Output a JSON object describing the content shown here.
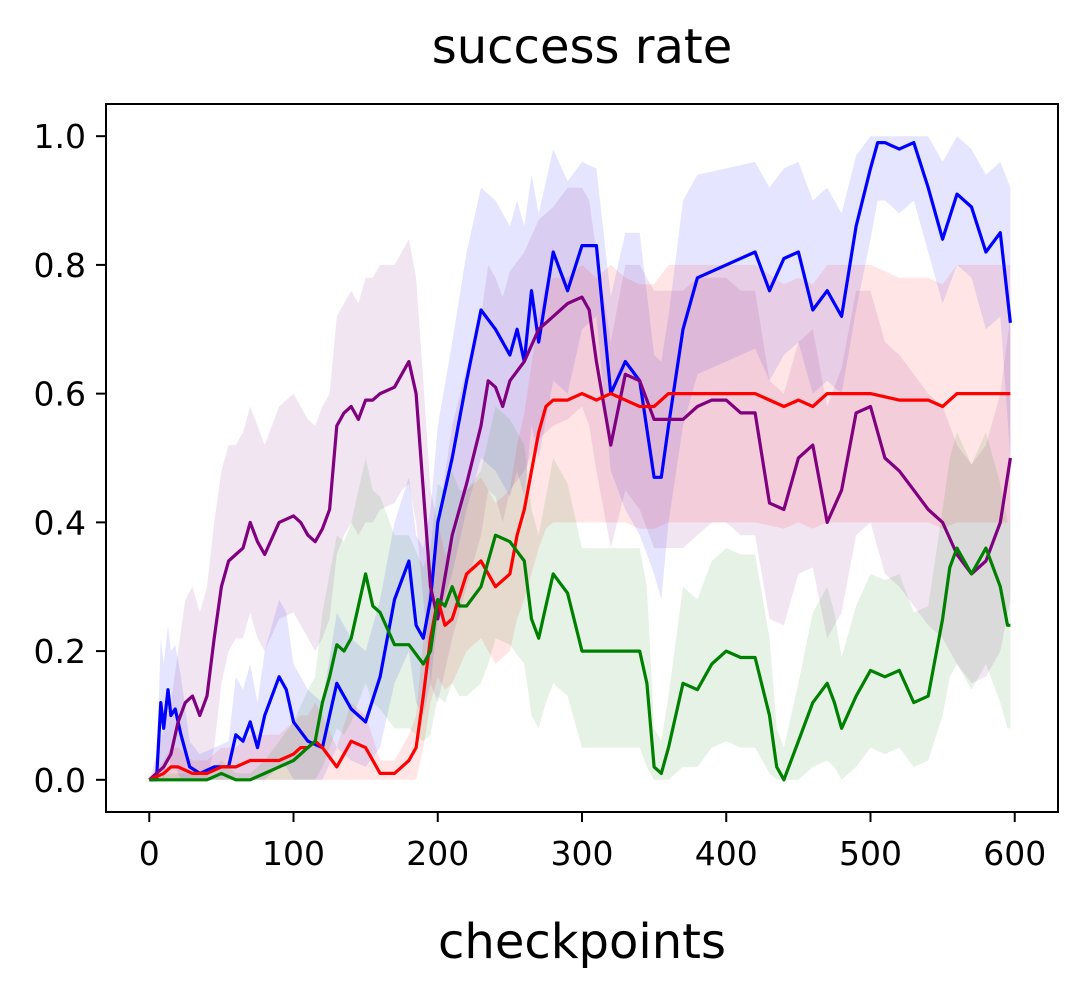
{
  "chart_data": {
    "type": "line",
    "title": "success rate",
    "xlabel": "checkpoints",
    "ylabel": "",
    "xlim": [
      -30,
      630
    ],
    "ylim": [
      -0.05,
      1.05
    ],
    "xticks": [
      0,
      100,
      200,
      300,
      400,
      500,
      600
    ],
    "yticks": [
      0.0,
      0.2,
      0.4,
      0.6,
      0.8,
      1.0
    ],
    "xtick_labels": [
      "0",
      "100",
      "200",
      "300",
      "400",
      "500",
      "600"
    ],
    "ytick_labels": [
      "0.0",
      "0.2",
      "0.4",
      "0.6",
      "0.8",
      "1.0"
    ],
    "grid": false,
    "legend": "none",
    "series": [
      {
        "color": "#0000ff",
        "band_opacity": 0.1,
        "x": [
          0,
          5,
          8,
          10,
          13,
          15,
          18,
          22,
          28,
          35,
          45,
          55,
          60,
          65,
          70,
          75,
          80,
          90,
          95,
          100,
          110,
          120,
          130,
          140,
          150,
          160,
          170,
          180,
          185,
          190,
          195,
          200,
          210,
          220,
          230,
          240,
          250,
          255,
          260,
          265,
          270,
          280,
          290,
          300,
          310,
          320,
          330,
          340,
          350,
          355,
          360,
          370,
          380,
          400,
          420,
          430,
          440,
          450,
          460,
          470,
          480,
          490,
          500,
          505,
          510,
          520,
          530,
          540,
          550,
          560,
          570,
          580,
          590,
          597
        ],
        "y": [
          0.0,
          0.0,
          0.12,
          0.08,
          0.14,
          0.1,
          0.11,
          0.07,
          0.02,
          0.01,
          0.02,
          0.02,
          0.07,
          0.06,
          0.09,
          0.05,
          0.1,
          0.16,
          0.14,
          0.09,
          0.06,
          0.05,
          0.15,
          0.11,
          0.09,
          0.16,
          0.28,
          0.34,
          0.24,
          0.22,
          0.28,
          0.4,
          0.5,
          0.62,
          0.73,
          0.7,
          0.66,
          0.7,
          0.65,
          0.76,
          0.68,
          0.82,
          0.76,
          0.83,
          0.83,
          0.6,
          0.65,
          0.62,
          0.47,
          0.47,
          0.55,
          0.7,
          0.78,
          0.8,
          0.82,
          0.76,
          0.81,
          0.82,
          0.73,
          0.76,
          0.72,
          0.86,
          0.95,
          0.99,
          0.99,
          0.98,
          0.99,
          0.92,
          0.84,
          0.91,
          0.89,
          0.82,
          0.85,
          0.71
        ],
        "y_low": [
          0.0,
          0.0,
          0.02,
          0.0,
          0.04,
          0.02,
          0.02,
          0.0,
          0.0,
          0.0,
          0.0,
          0.0,
          0.0,
          0.0,
          0.0,
          0.0,
          0.0,
          0.02,
          0.02,
          0.0,
          0.0,
          0.0,
          0.05,
          0.03,
          0.02,
          0.05,
          0.15,
          0.2,
          0.12,
          0.1,
          0.15,
          0.25,
          0.32,
          0.42,
          0.5,
          0.48,
          0.44,
          0.48,
          0.44,
          0.55,
          0.5,
          0.62,
          0.6,
          0.7,
          0.72,
          0.48,
          0.42,
          0.38,
          0.32,
          0.28,
          0.4,
          0.55,
          0.63,
          0.65,
          0.67,
          0.62,
          0.66,
          0.68,
          0.6,
          0.62,
          0.6,
          0.73,
          0.84,
          0.9,
          0.9,
          0.88,
          0.9,
          0.82,
          0.74,
          0.8,
          0.78,
          0.7,
          0.72,
          0.5
        ],
        "y_high": [
          0.0,
          0.02,
          0.22,
          0.18,
          0.24,
          0.2,
          0.21,
          0.16,
          0.06,
          0.04,
          0.05,
          0.06,
          0.16,
          0.14,
          0.18,
          0.12,
          0.2,
          0.28,
          0.26,
          0.18,
          0.14,
          0.12,
          0.26,
          0.22,
          0.2,
          0.28,
          0.4,
          0.47,
          0.38,
          0.36,
          0.42,
          0.55,
          0.68,
          0.82,
          0.92,
          0.9,
          0.86,
          0.9,
          0.86,
          0.94,
          0.88,
          0.98,
          0.93,
          0.96,
          0.95,
          0.75,
          0.85,
          0.85,
          0.66,
          0.65,
          0.72,
          0.9,
          0.94,
          0.95,
          0.96,
          0.92,
          0.95,
          0.96,
          0.9,
          0.92,
          0.88,
          0.97,
          1.0,
          1.0,
          1.0,
          1.0,
          1.0,
          1.0,
          0.96,
          1.0,
          0.98,
          0.94,
          0.96,
          0.92
        ]
      },
      {
        "color": "#800080",
        "band_opacity": 0.1,
        "x": [
          0,
          10,
          15,
          20,
          25,
          30,
          35,
          40,
          45,
          50,
          55,
          60,
          65,
          70,
          75,
          80,
          90,
          100,
          105,
          110,
          115,
          120,
          125,
          130,
          135,
          140,
          145,
          150,
          155,
          160,
          170,
          175,
          180,
          185,
          190,
          195,
          200,
          210,
          220,
          230,
          235,
          240,
          245,
          250,
          260,
          270,
          280,
          290,
          300,
          305,
          310,
          320,
          330,
          340,
          350,
          360,
          370,
          380,
          390,
          400,
          410,
          420,
          430,
          440,
          450,
          460,
          470,
          480,
          490,
          500,
          510,
          520,
          530,
          540,
          550,
          560,
          570,
          580,
          590,
          597
        ],
        "y": [
          0.0,
          0.02,
          0.04,
          0.09,
          0.12,
          0.13,
          0.1,
          0.13,
          0.22,
          0.3,
          0.34,
          0.35,
          0.36,
          0.4,
          0.37,
          0.35,
          0.4,
          0.41,
          0.4,
          0.38,
          0.37,
          0.39,
          0.42,
          0.55,
          0.57,
          0.58,
          0.56,
          0.59,
          0.59,
          0.6,
          0.61,
          0.63,
          0.65,
          0.6,
          0.45,
          0.3,
          0.25,
          0.38,
          0.46,
          0.55,
          0.62,
          0.61,
          0.58,
          0.62,
          0.65,
          0.7,
          0.72,
          0.74,
          0.75,
          0.73,
          0.65,
          0.52,
          0.63,
          0.62,
          0.56,
          0.56,
          0.56,
          0.58,
          0.59,
          0.59,
          0.57,
          0.57,
          0.43,
          0.42,
          0.5,
          0.52,
          0.4,
          0.45,
          0.57,
          0.58,
          0.5,
          0.48,
          0.45,
          0.42,
          0.4,
          0.35,
          0.32,
          0.34,
          0.4,
          0.5
        ],
        "y_low": [
          0.0,
          0.0,
          0.0,
          0.0,
          0.0,
          0.0,
          0.0,
          0.0,
          0.05,
          0.15,
          0.2,
          0.22,
          0.22,
          0.26,
          0.22,
          0.2,
          0.25,
          0.26,
          0.24,
          0.22,
          0.2,
          0.22,
          0.25,
          0.35,
          0.38,
          0.4,
          0.38,
          0.4,
          0.4,
          0.42,
          0.43,
          0.45,
          0.46,
          0.4,
          0.28,
          0.15,
          0.12,
          0.22,
          0.3,
          0.38,
          0.45,
          0.44,
          0.4,
          0.45,
          0.48,
          0.53,
          0.55,
          0.56,
          0.58,
          0.55,
          0.48,
          0.36,
          0.45,
          0.42,
          0.36,
          0.36,
          0.36,
          0.38,
          0.4,
          0.4,
          0.38,
          0.38,
          0.25,
          0.24,
          0.32,
          0.33,
          0.22,
          0.26,
          0.38,
          0.4,
          0.32,
          0.3,
          0.27,
          0.24,
          0.22,
          0.18,
          0.15,
          0.16,
          0.2,
          0.28
        ],
        "y_high": [
          0.0,
          0.08,
          0.12,
          0.2,
          0.28,
          0.3,
          0.26,
          0.3,
          0.4,
          0.48,
          0.52,
          0.52,
          0.54,
          0.58,
          0.55,
          0.52,
          0.58,
          0.6,
          0.58,
          0.56,
          0.55,
          0.58,
          0.6,
          0.72,
          0.74,
          0.76,
          0.74,
          0.78,
          0.78,
          0.8,
          0.8,
          0.82,
          0.84,
          0.78,
          0.62,
          0.45,
          0.4,
          0.55,
          0.64,
          0.72,
          0.8,
          0.78,
          0.75,
          0.79,
          0.82,
          0.87,
          0.89,
          0.92,
          0.92,
          0.9,
          0.82,
          0.68,
          0.8,
          0.8,
          0.76,
          0.76,
          0.76,
          0.78,
          0.78,
          0.78,
          0.76,
          0.76,
          0.62,
          0.6,
          0.68,
          0.7,
          0.58,
          0.64,
          0.76,
          0.76,
          0.68,
          0.66,
          0.63,
          0.6,
          0.58,
          0.52,
          0.49,
          0.52,
          0.6,
          0.72
        ]
      },
      {
        "color": "#ff0000",
        "band_opacity": 0.1,
        "x": [
          0,
          10,
          15,
          20,
          30,
          40,
          50,
          60,
          70,
          80,
          90,
          100,
          105,
          110,
          115,
          120,
          130,
          140,
          150,
          160,
          170,
          180,
          185,
          190,
          195,
          200,
          205,
          210,
          220,
          230,
          240,
          250,
          255,
          260,
          270,
          275,
          280,
          290,
          300,
          310,
          320,
          330,
          340,
          350,
          360,
          380,
          400,
          420,
          440,
          450,
          460,
          470,
          480,
          500,
          520,
          540,
          550,
          560,
          580,
          597
        ],
        "y": [
          0.0,
          0.01,
          0.02,
          0.02,
          0.01,
          0.01,
          0.02,
          0.02,
          0.03,
          0.03,
          0.03,
          0.04,
          0.05,
          0.05,
          0.06,
          0.05,
          0.02,
          0.06,
          0.05,
          0.01,
          0.01,
          0.03,
          0.05,
          0.13,
          0.22,
          0.28,
          0.24,
          0.25,
          0.32,
          0.34,
          0.3,
          0.32,
          0.38,
          0.42,
          0.54,
          0.58,
          0.59,
          0.59,
          0.6,
          0.59,
          0.6,
          0.59,
          0.58,
          0.58,
          0.6,
          0.6,
          0.6,
          0.6,
          0.58,
          0.59,
          0.58,
          0.6,
          0.6,
          0.6,
          0.59,
          0.59,
          0.58,
          0.6,
          0.6,
          0.6
        ],
        "y_low": [
          0.0,
          0.0,
          0.0,
          0.0,
          0.0,
          0.0,
          0.0,
          0.0,
          0.0,
          0.0,
          0.0,
          0.0,
          0.0,
          0.0,
          0.0,
          0.0,
          0.0,
          0.0,
          0.0,
          0.0,
          0.0,
          0.0,
          0.0,
          0.05,
          0.12,
          0.16,
          0.14,
          0.15,
          0.2,
          0.22,
          0.18,
          0.2,
          0.25,
          0.28,
          0.36,
          0.39,
          0.4,
          0.4,
          0.4,
          0.4,
          0.4,
          0.4,
          0.39,
          0.39,
          0.4,
          0.4,
          0.4,
          0.4,
          0.39,
          0.4,
          0.39,
          0.4,
          0.4,
          0.4,
          0.4,
          0.4,
          0.39,
          0.4,
          0.4,
          0.4
        ],
        "y_high": [
          0.0,
          0.03,
          0.05,
          0.05,
          0.03,
          0.03,
          0.05,
          0.05,
          0.07,
          0.07,
          0.07,
          0.09,
          0.1,
          0.1,
          0.12,
          0.1,
          0.05,
          0.12,
          0.1,
          0.03,
          0.03,
          0.07,
          0.1,
          0.22,
          0.32,
          0.4,
          0.35,
          0.36,
          0.45,
          0.47,
          0.43,
          0.45,
          0.52,
          0.57,
          0.72,
          0.77,
          0.78,
          0.78,
          0.8,
          0.78,
          0.8,
          0.78,
          0.77,
          0.77,
          0.8,
          0.8,
          0.8,
          0.8,
          0.77,
          0.78,
          0.77,
          0.8,
          0.8,
          0.8,
          0.78,
          0.78,
          0.77,
          0.8,
          0.8,
          0.8
        ]
      },
      {
        "color": "#008000",
        "band_opacity": 0.1,
        "x": [
          0,
          10,
          20,
          30,
          40,
          50,
          60,
          70,
          80,
          90,
          100,
          110,
          115,
          120,
          125,
          130,
          135,
          140,
          145,
          150,
          155,
          160,
          170,
          180,
          190,
          195,
          200,
          205,
          210,
          215,
          220,
          230,
          235,
          240,
          250,
          260,
          265,
          270,
          275,
          280,
          290,
          300,
          320,
          340,
          345,
          350,
          355,
          360,
          370,
          380,
          390,
          400,
          410,
          420,
          430,
          435,
          440,
          450,
          460,
          470,
          475,
          480,
          490,
          500,
          510,
          520,
          530,
          540,
          550,
          555,
          560,
          570,
          580,
          590,
          595,
          597
        ],
        "y": [
          0.0,
          0.0,
          0.0,
          0.0,
          0.0,
          0.01,
          0.0,
          0.0,
          0.01,
          0.02,
          0.03,
          0.05,
          0.06,
          0.12,
          0.16,
          0.21,
          0.2,
          0.22,
          0.27,
          0.32,
          0.27,
          0.26,
          0.21,
          0.21,
          0.18,
          0.2,
          0.28,
          0.27,
          0.3,
          0.27,
          0.27,
          0.3,
          0.34,
          0.38,
          0.37,
          0.34,
          0.25,
          0.22,
          0.27,
          0.32,
          0.29,
          0.2,
          0.2,
          0.2,
          0.15,
          0.02,
          0.01,
          0.05,
          0.15,
          0.14,
          0.18,
          0.2,
          0.19,
          0.19,
          0.1,
          0.02,
          0.0,
          0.06,
          0.12,
          0.15,
          0.12,
          0.08,
          0.13,
          0.17,
          0.16,
          0.17,
          0.12,
          0.13,
          0.25,
          0.33,
          0.36,
          0.32,
          0.36,
          0.3,
          0.24,
          0.24
        ],
        "y_low": [
          0.0,
          0.0,
          0.0,
          0.0,
          0.0,
          0.0,
          0.0,
          0.0,
          0.0,
          0.0,
          0.0,
          0.0,
          0.0,
          0.02,
          0.05,
          0.08,
          0.07,
          0.09,
          0.12,
          0.15,
          0.12,
          0.11,
          0.08,
          0.08,
          0.06,
          0.07,
          0.13,
          0.12,
          0.15,
          0.13,
          0.13,
          0.15,
          0.18,
          0.22,
          0.21,
          0.18,
          0.1,
          0.08,
          0.12,
          0.15,
          0.13,
          0.05,
          0.05,
          0.05,
          0.02,
          0.0,
          0.0,
          0.0,
          0.02,
          0.02,
          0.05,
          0.06,
          0.05,
          0.05,
          0.01,
          0.0,
          0.0,
          0.0,
          0.02,
          0.03,
          0.02,
          0.0,
          0.02,
          0.05,
          0.04,
          0.05,
          0.02,
          0.03,
          0.1,
          0.16,
          0.18,
          0.14,
          0.18,
          0.12,
          0.08,
          0.08
        ],
        "y_high": [
          0.0,
          0.01,
          0.01,
          0.01,
          0.01,
          0.03,
          0.01,
          0.01,
          0.03,
          0.06,
          0.09,
          0.14,
          0.16,
          0.26,
          0.32,
          0.38,
          0.37,
          0.4,
          0.45,
          0.5,
          0.45,
          0.44,
          0.38,
          0.38,
          0.33,
          0.36,
          0.46,
          0.45,
          0.48,
          0.45,
          0.45,
          0.48,
          0.53,
          0.58,
          0.56,
          0.52,
          0.42,
          0.38,
          0.44,
          0.5,
          0.46,
          0.36,
          0.36,
          0.36,
          0.3,
          0.08,
          0.06,
          0.13,
          0.3,
          0.28,
          0.34,
          0.36,
          0.35,
          0.35,
          0.22,
          0.08,
          0.05,
          0.15,
          0.26,
          0.3,
          0.26,
          0.19,
          0.27,
          0.32,
          0.31,
          0.32,
          0.26,
          0.27,
          0.42,
          0.5,
          0.54,
          0.49,
          0.54,
          0.46,
          0.4,
          0.4
        ]
      }
    ]
  }
}
